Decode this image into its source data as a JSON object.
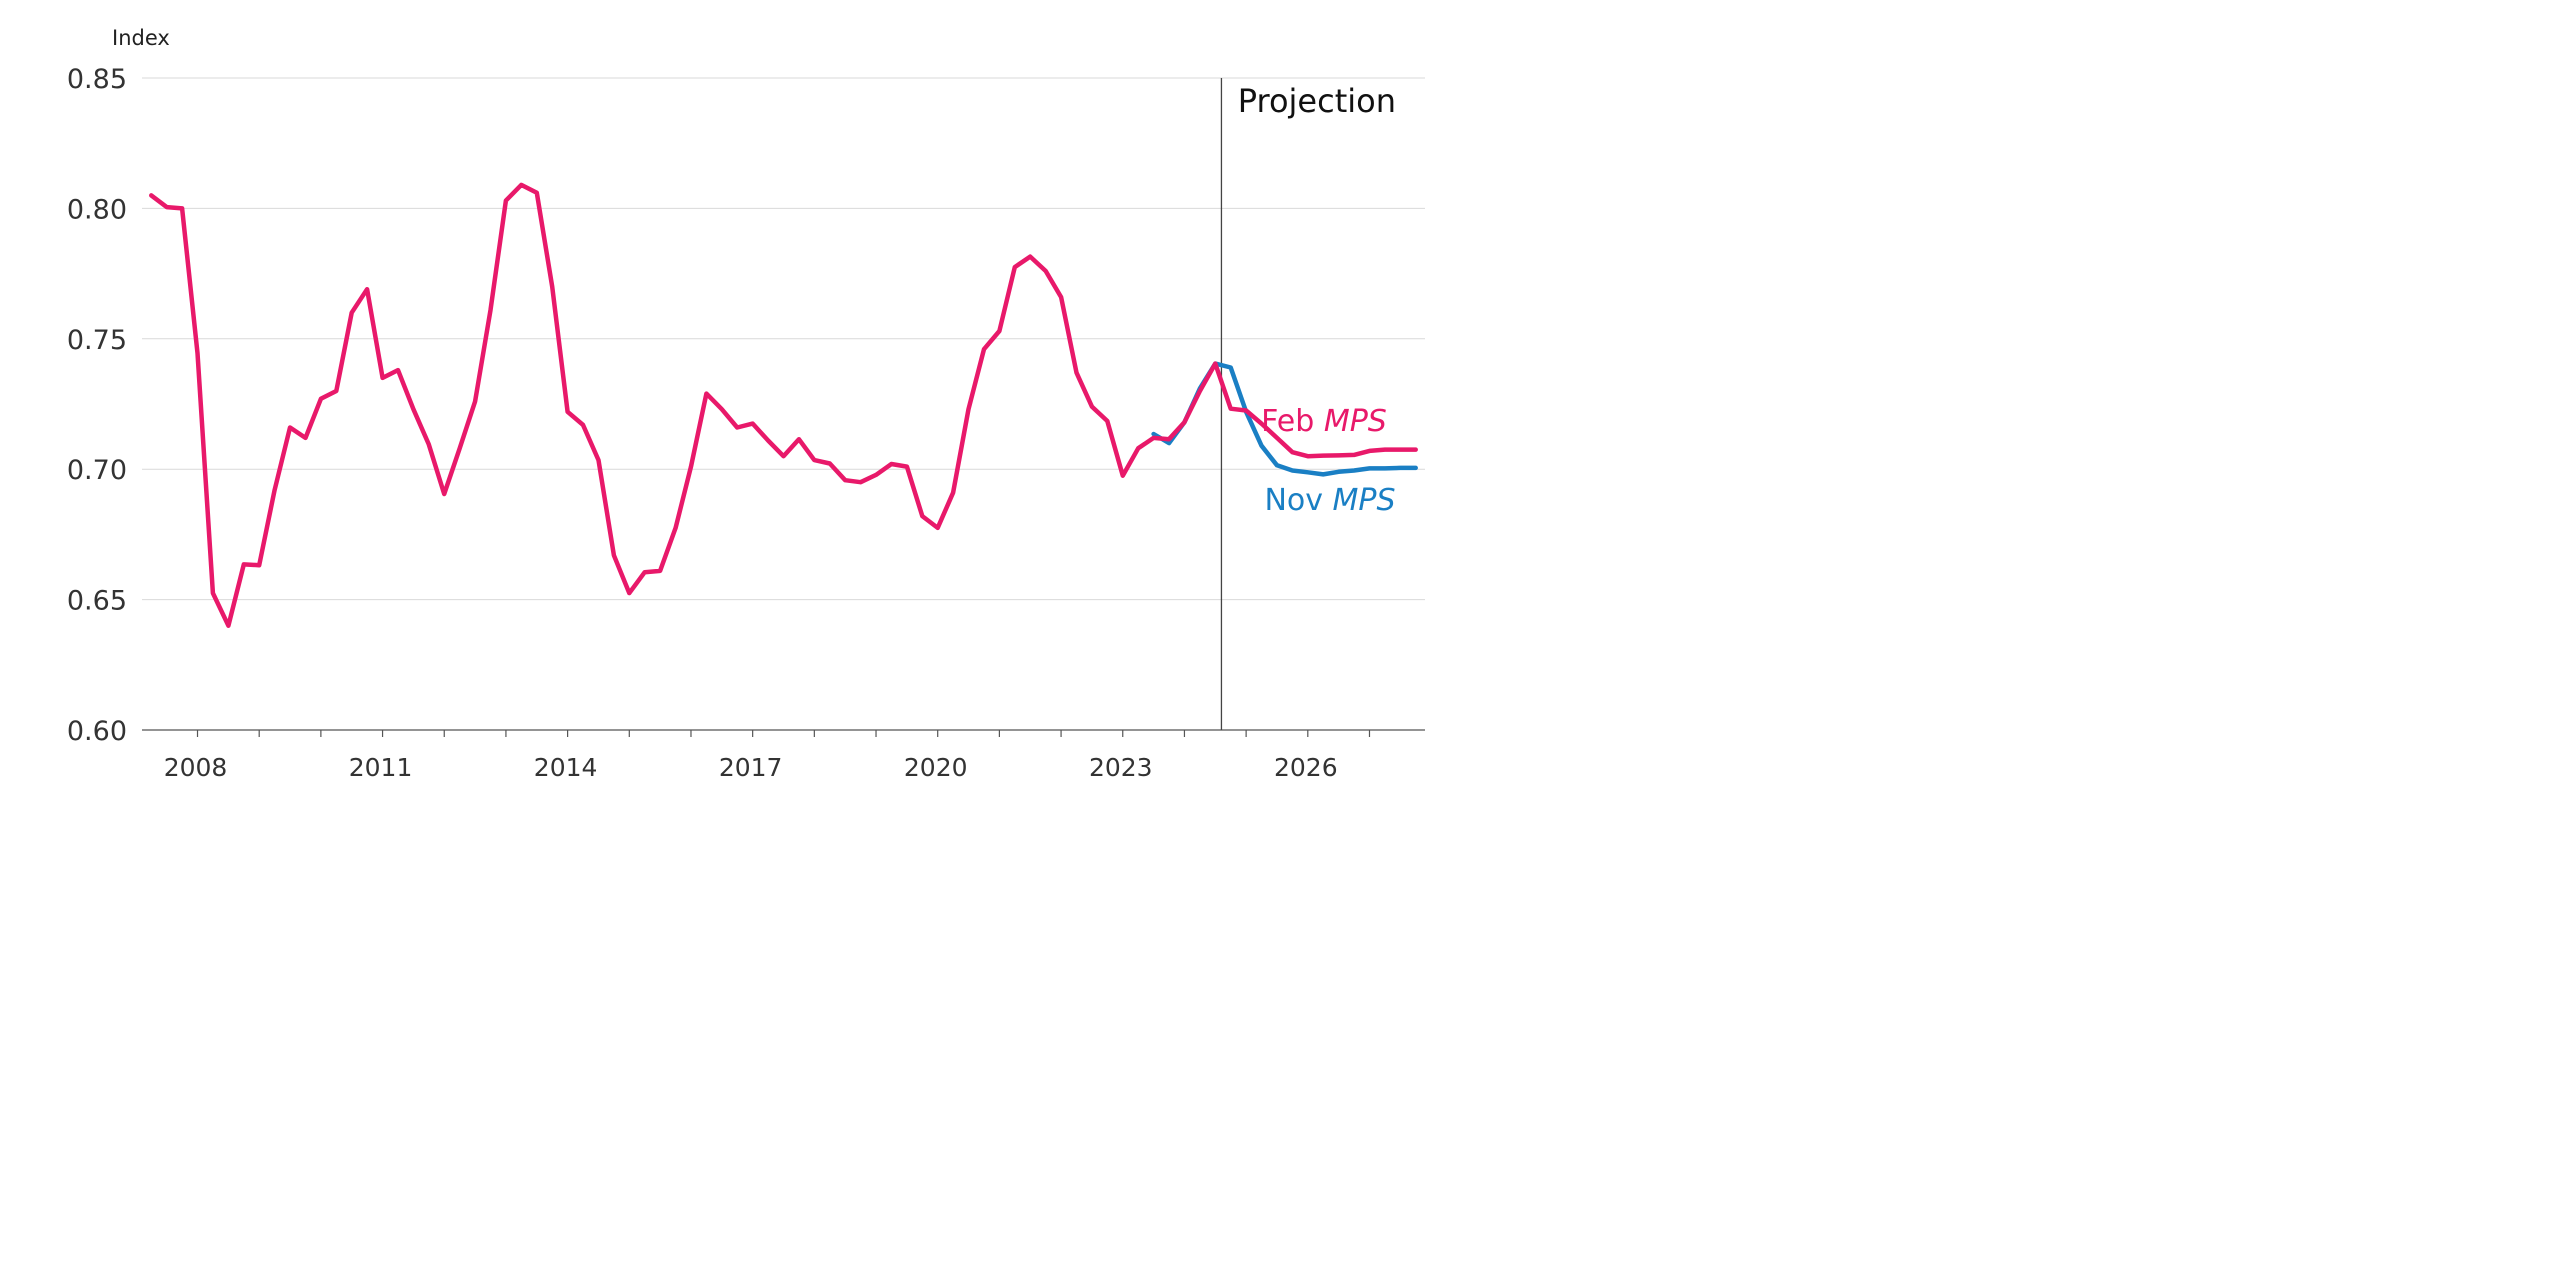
{
  "chart_data": {
    "type": "line",
    "ylabel": "Index",
    "ylim": [
      0.6,
      0.85
    ],
    "yticks": [
      "0.60",
      "0.65",
      "0.70",
      "0.75",
      "0.80",
      "0.85"
    ],
    "ytick_values": [
      0.6,
      0.65,
      0.7,
      0.75,
      0.8,
      0.85
    ],
    "xlim": [
      2007.6,
      2028.4
    ],
    "xticks": [
      "2008",
      "2011",
      "2014",
      "2017",
      "2020",
      "2023",
      "2026"
    ],
    "xtick_values": [
      2008,
      2011,
      2014,
      2017,
      2020,
      2023,
      2026
    ],
    "minor_tick_start": 2007.5,
    "minor_tick_end": 2028.4,
    "projection_start": 2025.1,
    "projection_label": "Projection",
    "grid": true,
    "series": [
      {
        "name": "Nov MPS",
        "label_prefix": "Nov ",
        "label_italic": "MPS",
        "color": "#1a7fc4",
        "x": [
          2024.0,
          2024.25,
          2024.5,
          2024.75,
          2025.0,
          2025.25,
          2025.5,
          2025.75,
          2026.0,
          2026.25,
          2026.5,
          2026.75,
          2027.0,
          2027.25,
          2027.5,
          2027.75,
          2028.0,
          2028.25
        ],
        "y": [
          0.7135,
          0.71,
          0.718,
          0.731,
          0.7405,
          0.739,
          0.722,
          0.709,
          0.7015,
          0.6995,
          0.6988,
          0.698,
          0.699,
          0.6995,
          0.7003,
          0.7003,
          0.7005,
          0.7005
        ]
      },
      {
        "name": "Feb MPS",
        "label_prefix": "Feb ",
        "label_italic": "MPS",
        "color": "#e8196a",
        "x": [
          2007.75,
          2008.0,
          2008.25,
          2008.5,
          2008.75,
          2009.0,
          2009.25,
          2009.5,
          2009.75,
          2010.0,
          2010.25,
          2010.5,
          2010.75,
          2011.0,
          2011.25,
          2011.5,
          2011.75,
          2012.0,
          2012.25,
          2012.5,
          2012.75,
          2013.0,
          2013.25,
          2013.5,
          2013.75,
          2014.0,
          2014.25,
          2014.5,
          2014.75,
          2015.0,
          2015.25,
          2015.5,
          2015.75,
          2016.0,
          2016.25,
          2016.5,
          2016.75,
          2017.0,
          2017.25,
          2017.5,
          2017.75,
          2018.0,
          2018.25,
          2018.5,
          2018.75,
          2019.0,
          2019.25,
          2019.5,
          2019.75,
          2020.0,
          2020.25,
          2020.5,
          2020.75,
          2021.0,
          2021.25,
          2021.5,
          2021.75,
          2022.0,
          2022.25,
          2022.5,
          2022.75,
          2023.0,
          2023.25,
          2023.5,
          2023.75,
          2024.0,
          2024.25,
          2024.5,
          2024.75,
          2025.0,
          2025.25,
          2025.5,
          2025.75,
          2026.0,
          2026.25,
          2026.5,
          2026.75,
          2027.0,
          2027.25,
          2027.5,
          2027.75,
          2028.0,
          2028.25
        ],
        "y": [
          0.805,
          0.8005,
          0.8,
          0.7445,
          0.6525,
          0.64,
          0.6635,
          0.6632,
          0.692,
          0.716,
          0.712,
          0.727,
          0.73,
          0.76,
          0.769,
          0.735,
          0.738,
          0.723,
          0.7095,
          0.6905,
          0.708,
          0.726,
          0.761,
          0.803,
          0.809,
          0.806,
          0.77,
          0.722,
          0.717,
          0.7035,
          0.667,
          0.6525,
          0.6605,
          0.661,
          0.6775,
          0.701,
          0.729,
          0.723,
          0.716,
          0.7175,
          0.711,
          0.705,
          0.7115,
          0.7035,
          0.7022,
          0.6958,
          0.695,
          0.6978,
          0.702,
          0.701,
          0.682,
          0.6775,
          0.691,
          0.723,
          0.746,
          0.753,
          0.7775,
          0.7815,
          0.776,
          0.766,
          0.737,
          0.724,
          0.7185,
          0.6975,
          0.708,
          0.712,
          0.7115,
          0.718,
          0.73,
          0.7405,
          0.7232,
          0.7225,
          0.7175,
          0.712,
          0.7065,
          0.705,
          0.7052,
          0.7053,
          0.7055,
          0.707,
          0.7075,
          0.7075,
          0.7075
        ]
      }
    ]
  }
}
